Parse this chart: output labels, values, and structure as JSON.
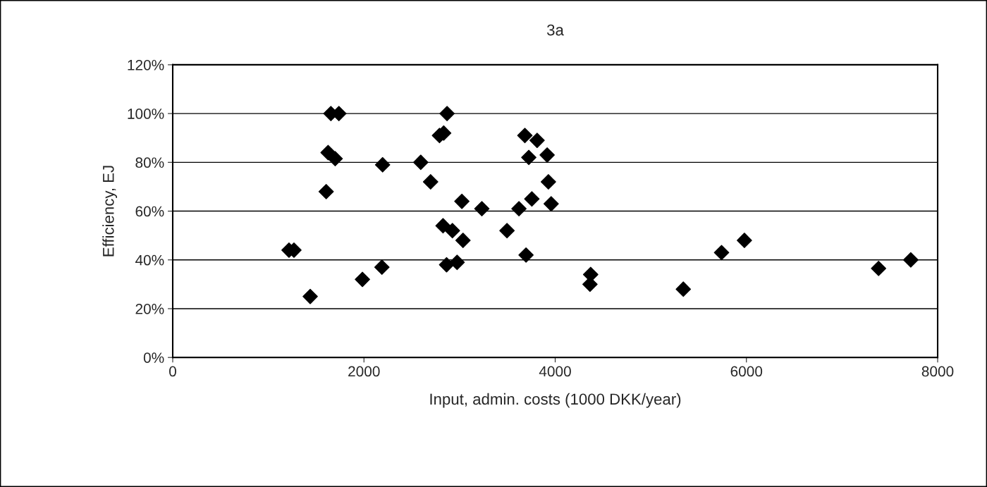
{
  "chart_data": {
    "type": "scatter",
    "title": "3a",
    "xlabel": "Input, admin. costs (1000 DKK/year)",
    "ylabel": "Efficiency, EJ",
    "x": [
      1654,
      1738,
      2869,
      2790,
      2834,
      1625,
      1699,
      2195,
      2594,
      2697,
      1605,
      3024,
      3233,
      2827,
      2925,
      3036,
      1216,
      1268,
      2864,
      2974,
      2188,
      1984,
      1438,
      3683,
      3811,
      3916,
      3724,
      3929,
      3756,
      3958,
      3621,
      3496,
      3695,
      4371,
      4364,
      5340,
      5740,
      5979,
      7382,
      7719
    ],
    "series": [
      {
        "color": "#000000",
        "values": [
          1.0,
          1.0,
          1.0,
          0.91,
          0.92,
          0.84,
          0.815,
          0.79,
          0.8,
          0.72,
          0.68,
          0.64,
          0.61,
          0.54,
          0.52,
          0.48,
          0.44,
          0.44,
          0.38,
          0.39,
          0.37,
          0.32,
          0.25,
          0.91,
          0.89,
          0.83,
          0.82,
          0.72,
          0.65,
          0.63,
          0.61,
          0.52,
          0.42,
          0.34,
          0.3,
          0.28,
          0.43,
          0.48,
          0.365,
          0.4
        ]
      }
    ],
    "xlim": [
      0,
      8000
    ],
    "xticks": [
      0,
      2000,
      4000,
      6000,
      8000
    ],
    "ylim": [
      0,
      1.2
    ],
    "yticks": [
      {
        "value": 0,
        "label": "0%"
      },
      {
        "value": 0.2,
        "label": "20%"
      },
      {
        "value": 0.4,
        "label": "40%"
      },
      {
        "value": 0.6,
        "label": "60%"
      },
      {
        "value": 0.8,
        "label": "80%"
      },
      {
        "value": 1.0,
        "label": "100%"
      },
      {
        "value": 1.2,
        "label": "120%"
      }
    ],
    "grid": "y",
    "marker": "diamond",
    "legend": false
  }
}
